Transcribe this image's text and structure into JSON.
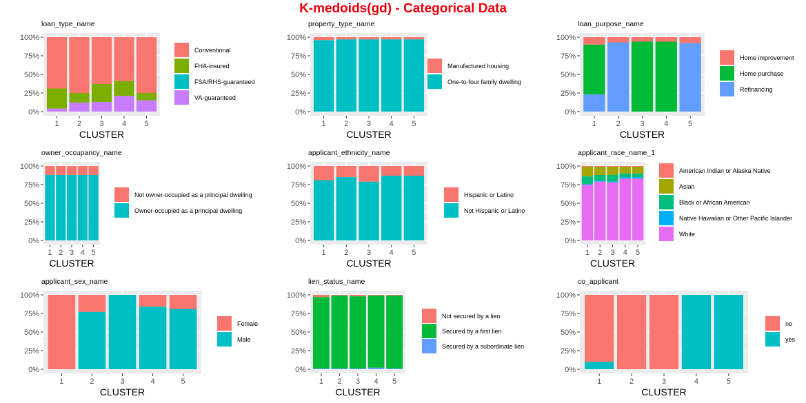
{
  "title": "K-medoids(gd) - Categorical Data",
  "chart_data": [
    {
      "type": "bar",
      "stacked": true,
      "title": "loan_type_name",
      "xlabel": "CLUSTER",
      "ylabel": "",
      "categories": [
        "1",
        "2",
        "3",
        "4",
        "5"
      ],
      "ylim": [
        0,
        1
      ],
      "yticks": [
        "0%",
        "25%",
        "50%",
        "75%",
        "100%"
      ],
      "legend_position": "right",
      "series": [
        {
          "name": "Conventional",
          "color": "#F8766D",
          "values": [
            0.69,
            0.75,
            0.63,
            0.59,
            0.75
          ]
        },
        {
          "name": "FHA-insured",
          "color": "#7CAE00",
          "values": [
            0.27,
            0.13,
            0.24,
            0.2,
            0.1
          ]
        },
        {
          "name": "FSA/RHS-guaranteed",
          "color": "#00BFC4",
          "values": [
            0.0,
            0.0,
            0.0,
            0.0,
            0.0
          ]
        },
        {
          "name": "VA-guaranteed",
          "color": "#C77CFF",
          "values": [
            0.04,
            0.12,
            0.13,
            0.21,
            0.15
          ]
        }
      ]
    },
    {
      "type": "bar",
      "stacked": true,
      "title": "property_type_name",
      "xlabel": "CLUSTER",
      "ylabel": "",
      "categories": [
        "1",
        "2",
        "3",
        "4",
        "5"
      ],
      "ylim": [
        0,
        1
      ],
      "yticks": [
        "0%",
        "25%",
        "50%",
        "75%",
        "100%"
      ],
      "legend_position": "right",
      "series": [
        {
          "name": "Manufactured housing",
          "color": "#F8766D",
          "values": [
            0.04,
            0.03,
            0.03,
            0.03,
            0.03
          ]
        },
        {
          "name": "One-to-four family dwelling",
          "color": "#00BFC4",
          "values": [
            0.96,
            0.97,
            0.97,
            0.97,
            0.97
          ]
        }
      ]
    },
    {
      "type": "bar",
      "stacked": true,
      "title": "loan_purpose_name",
      "xlabel": "CLUSTER",
      "ylabel": "",
      "categories": [
        "1",
        "2",
        "3",
        "4",
        "5"
      ],
      "ylim": [
        0,
        1
      ],
      "yticks": [
        "0%",
        "25%",
        "50%",
        "75%",
        "100%"
      ],
      "legend_position": "right",
      "series": [
        {
          "name": "Home improvement",
          "color": "#F8766D",
          "values": [
            0.1,
            0.07,
            0.06,
            0.06,
            0.08
          ]
        },
        {
          "name": "Home purchase",
          "color": "#00BA38",
          "values": [
            0.67,
            0.0,
            0.94,
            0.94,
            0.0
          ]
        },
        {
          "name": "Refinancing",
          "color": "#619CFF",
          "values": [
            0.23,
            0.93,
            0.0,
            0.0,
            0.92
          ]
        }
      ]
    },
    {
      "type": "bar",
      "stacked": true,
      "title": "owner_occupancy_name",
      "xlabel": "CLUSTER",
      "ylabel": "",
      "categories": [
        "1",
        "2",
        "3",
        "4",
        "5"
      ],
      "ylim": [
        0,
        1
      ],
      "yticks": [
        "0%",
        "25%",
        "50%",
        "75%",
        "100%"
      ],
      "legend_position": "right",
      "series": [
        {
          "name": "Not owner-occupied as a principal dwelling",
          "color": "#F8766D",
          "values": [
            0.12,
            0.12,
            0.12,
            0.12,
            0.12
          ]
        },
        {
          "name": "Owner-occupied as a principal dwelling",
          "color": "#00BFC4",
          "values": [
            0.88,
            0.88,
            0.88,
            0.88,
            0.88
          ]
        }
      ]
    },
    {
      "type": "bar",
      "stacked": true,
      "title": "applicant_ethnicity_name",
      "xlabel": "CLUSTER",
      "ylabel": "",
      "categories": [
        "1",
        "2",
        "3",
        "4",
        "5"
      ],
      "ylim": [
        0,
        1
      ],
      "yticks": [
        "0%",
        "25%",
        "50%",
        "75%",
        "100%"
      ],
      "legend_position": "right",
      "series": [
        {
          "name": "Hispanic or Latino",
          "color": "#F8766D",
          "values": [
            0.19,
            0.15,
            0.21,
            0.13,
            0.13
          ]
        },
        {
          "name": "Not Hispanic or Latino",
          "color": "#00BFC4",
          "values": [
            0.81,
            0.85,
            0.79,
            0.87,
            0.87
          ]
        }
      ]
    },
    {
      "type": "bar",
      "stacked": true,
      "title": "applicant_race_name_1",
      "xlabel": "CLUSTER",
      "ylabel": "",
      "categories": [
        "1",
        "2",
        "3",
        "4",
        "5"
      ],
      "ylim": [
        0,
        1
      ],
      "yticks": [
        "0%",
        "25%",
        "50%",
        "75%",
        "100%"
      ],
      "legend_position": "right",
      "series": [
        {
          "name": "American Indian or Alaska Native",
          "color": "#F8766D",
          "values": [
            0.01,
            0.01,
            0.01,
            0.01,
            0.01
          ]
        },
        {
          "name": "Asian",
          "color": "#A3A500",
          "values": [
            0.13,
            0.11,
            0.11,
            0.09,
            0.09
          ]
        },
        {
          "name": "Black or African American",
          "color": "#00BF7D",
          "values": [
            0.1,
            0.08,
            0.09,
            0.05,
            0.05
          ]
        },
        {
          "name": "Native Hawaiian or Other Pacific Islander",
          "color": "#00B0F6",
          "values": [
            0.01,
            0.01,
            0.01,
            0.02,
            0.02
          ]
        },
        {
          "name": "White",
          "color": "#E76BF3",
          "values": [
            0.75,
            0.79,
            0.78,
            0.83,
            0.83
          ]
        }
      ]
    },
    {
      "type": "bar",
      "stacked": true,
      "title": "applicant_sex_name",
      "xlabel": "CLUSTER",
      "ylabel": "",
      "categories": [
        "1",
        "2",
        "3",
        "4",
        "5"
      ],
      "ylim": [
        0,
        1
      ],
      "yticks": [
        "0%",
        "25%",
        "50%",
        "75%",
        "100%"
      ],
      "legend_position": "right",
      "series": [
        {
          "name": "Female",
          "color": "#F8766D",
          "values": [
            1.0,
            0.23,
            0.0,
            0.16,
            0.19
          ]
        },
        {
          "name": "Male",
          "color": "#00BFC4",
          "values": [
            0.0,
            0.77,
            1.0,
            0.84,
            0.81
          ]
        }
      ]
    },
    {
      "type": "bar",
      "stacked": true,
      "title": "lien_status_name",
      "xlabel": "CLUSTER",
      "ylabel": "",
      "categories": [
        "1",
        "2",
        "3",
        "4",
        "5"
      ],
      "ylim": [
        0,
        1
      ],
      "yticks": [
        "0%",
        "25%",
        "50%",
        "75%",
        "100%"
      ],
      "legend_position": "right",
      "series": [
        {
          "name": "Not secured by a lien",
          "color": "#F8766D",
          "values": [
            0.03,
            0.01,
            0.02,
            0.01,
            0.01
          ]
        },
        {
          "name": "Secured by a first lien",
          "color": "#00BA38",
          "values": [
            0.96,
            0.98,
            0.97,
            0.97,
            0.98
          ]
        },
        {
          "name": "Secured by a subordinate lien",
          "color": "#619CFF",
          "values": [
            0.01,
            0.01,
            0.01,
            0.02,
            0.01
          ]
        }
      ]
    },
    {
      "type": "bar",
      "stacked": true,
      "title": "co_applicant",
      "xlabel": "CLUSTER",
      "ylabel": "",
      "categories": [
        "1",
        "2",
        "3",
        "4",
        "5"
      ],
      "ylim": [
        0,
        1
      ],
      "yticks": [
        "0%",
        "25%",
        "50%",
        "75%",
        "100%"
      ],
      "legend_position": "right",
      "series": [
        {
          "name": "no",
          "color": "#F8766D",
          "values": [
            0.9,
            1.0,
            1.0,
            0.0,
            0.0
          ]
        },
        {
          "name": "yes",
          "color": "#00BFC4",
          "values": [
            0.1,
            0.0,
            0.0,
            1.0,
            1.0
          ]
        }
      ]
    }
  ]
}
